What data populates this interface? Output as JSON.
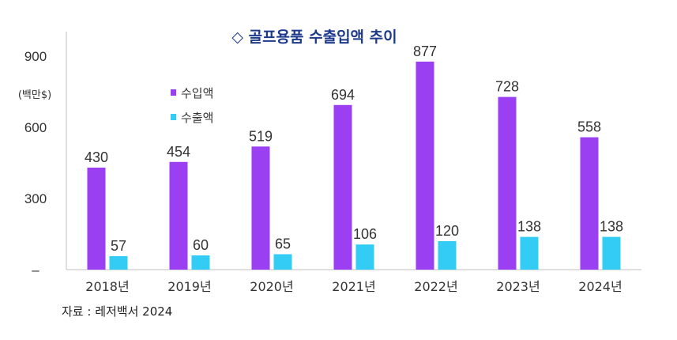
{
  "chart_data": {
    "type": "bar",
    "title": "◇ 골프용품 수출입액 추이",
    "unit_label": "(백만$)",
    "categories": [
      "2018년",
      "2019년",
      "2020년",
      "2021년",
      "2022년",
      "2023년",
      "2024년"
    ],
    "series": [
      {
        "name": "수입액",
        "color": "#9b3ff2",
        "values": [
          430,
          454,
          519,
          694,
          877,
          728,
          558
        ]
      },
      {
        "name": "수출액",
        "color": "#33ccf5",
        "values": [
          57,
          60,
          65,
          106,
          120,
          138,
          138
        ]
      }
    ],
    "yticks": [
      "900",
      "600",
      "300",
      "–"
    ],
    "ytick_values": [
      900,
      600,
      300,
      0
    ],
    "ylim": [
      0,
      1000
    ],
    "legend_position": "top-left",
    "grid": false
  },
  "source": "자료 : 레저백서 2024"
}
